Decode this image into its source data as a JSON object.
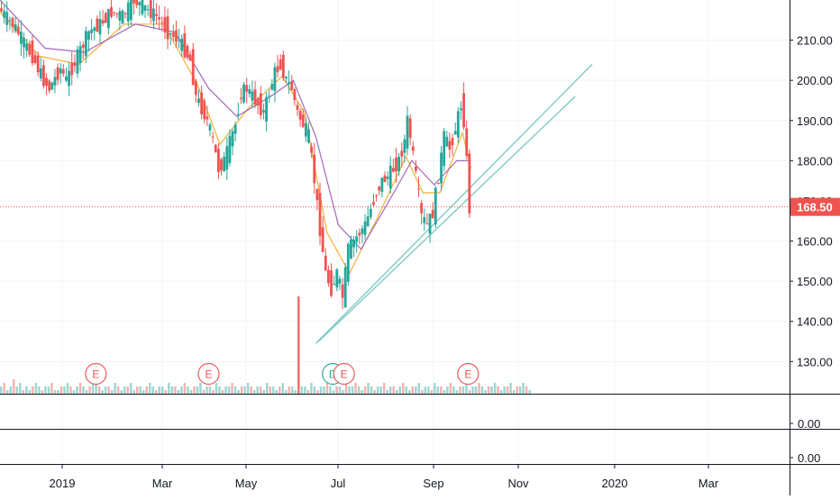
{
  "chart_data": {
    "type": "candlestick",
    "price_axis": {
      "ticks": [
        "130.00",
        "140.00",
        "150.00",
        "160.00",
        "170.00",
        "180.00",
        "190.00",
        "200.00",
        "210.00"
      ],
      "tick_values": [
        130,
        140,
        150,
        160,
        170,
        180,
        190,
        200,
        210
      ],
      "range": [
        122,
        220
      ]
    },
    "time_axis": {
      "labels": [
        "2019",
        "Mar",
        "May",
        "Jul",
        "Sep",
        "Nov",
        "2020",
        "Mar"
      ]
    },
    "last_price": {
      "label": "168.50",
      "value": 168.5
    },
    "price_series": [
      {
        "t": 0,
        "v": 218
      },
      {
        "t": 6,
        "v": 213
      },
      {
        "t": 10,
        "v": 208
      },
      {
        "t": 12,
        "v": 206
      },
      {
        "t": 16,
        "v": 200
      },
      {
        "t": 18,
        "v": 198
      },
      {
        "t": 22,
        "v": 203
      },
      {
        "t": 24,
        "v": 200
      },
      {
        "t": 28,
        "v": 206
      },
      {
        "t": 32,
        "v": 212
      },
      {
        "t": 36,
        "v": 214
      },
      {
        "t": 40,
        "v": 217
      },
      {
        "t": 44,
        "v": 216
      },
      {
        "t": 48,
        "v": 220
      },
      {
        "t": 52,
        "v": 218
      },
      {
        "t": 56,
        "v": 216
      },
      {
        "t": 60,
        "v": 212
      },
      {
        "t": 64,
        "v": 210
      },
      {
        "t": 68,
        "v": 205
      },
      {
        "t": 70,
        "v": 196
      },
      {
        "t": 74,
        "v": 190
      },
      {
        "t": 76,
        "v": 185
      },
      {
        "t": 78,
        "v": 178
      },
      {
        "t": 80,
        "v": 180
      },
      {
        "t": 84,
        "v": 189
      },
      {
        "t": 86,
        "v": 197
      },
      {
        "t": 88,
        "v": 198
      },
      {
        "t": 92,
        "v": 194
      },
      {
        "t": 94,
        "v": 192
      },
      {
        "t": 96,
        "v": 197
      },
      {
        "t": 98,
        "v": 202
      },
      {
        "t": 100,
        "v": 204
      },
      {
        "t": 102,
        "v": 200
      },
      {
        "t": 104,
        "v": 198
      },
      {
        "t": 106,
        "v": 192
      },
      {
        "t": 108,
        "v": 189
      },
      {
        "t": 110,
        "v": 186
      },
      {
        "t": 112,
        "v": 175
      },
      {
        "t": 114,
        "v": 163
      },
      {
        "t": 116,
        "v": 152
      },
      {
        "t": 118,
        "v": 148
      },
      {
        "t": 120,
        "v": 152
      },
      {
        "t": 122,
        "v": 146
      },
      {
        "t": 124,
        "v": 158
      },
      {
        "t": 126,
        "v": 160
      },
      {
        "t": 128,
        "v": 162
      },
      {
        "t": 130,
        "v": 164
      },
      {
        "t": 132,
        "v": 168
      },
      {
        "t": 134,
        "v": 172
      },
      {
        "t": 136,
        "v": 175
      },
      {
        "t": 138,
        "v": 176
      },
      {
        "t": 140,
        "v": 178
      },
      {
        "t": 142,
        "v": 180
      },
      {
        "t": 144,
        "v": 185
      },
      {
        "t": 145,
        "v": 190
      },
      {
        "t": 146,
        "v": 186
      },
      {
        "t": 148,
        "v": 176
      },
      {
        "t": 150,
        "v": 166
      },
      {
        "t": 152,
        "v": 164
      },
      {
        "t": 154,
        "v": 167
      },
      {
        "t": 156,
        "v": 176
      },
      {
        "t": 158,
        "v": 186
      },
      {
        "t": 160,
        "v": 183
      },
      {
        "t": 162,
        "v": 188
      },
      {
        "t": 164,
        "v": 194
      },
      {
        "t": 165,
        "v": 190
      },
      {
        "t": 166,
        "v": 180
      },
      {
        "t": 167,
        "v": 168
      }
    ],
    "moving_averages": [
      {
        "color": "#f5a623",
        "values": [
          {
            "t": 0,
            "v": 217
          },
          {
            "t": 14,
            "v": 206
          },
          {
            "t": 28,
            "v": 204
          },
          {
            "t": 44,
            "v": 214
          },
          {
            "t": 58,
            "v": 214
          },
          {
            "t": 70,
            "v": 199
          },
          {
            "t": 78,
            "v": 184
          },
          {
            "t": 88,
            "v": 193
          },
          {
            "t": 100,
            "v": 201
          },
          {
            "t": 108,
            "v": 192
          },
          {
            "t": 116,
            "v": 162
          },
          {
            "t": 124,
            "v": 152
          },
          {
            "t": 134,
            "v": 166
          },
          {
            "t": 144,
            "v": 181
          },
          {
            "t": 150,
            "v": 172
          },
          {
            "t": 156,
            "v": 172
          },
          {
            "t": 164,
            "v": 187
          },
          {
            "t": 167,
            "v": 178
          }
        ]
      },
      {
        "color": "#9b59b6",
        "values": [
          {
            "t": 0,
            "v": 220
          },
          {
            "t": 16,
            "v": 208
          },
          {
            "t": 30,
            "v": 207
          },
          {
            "t": 48,
            "v": 214
          },
          {
            "t": 62,
            "v": 212
          },
          {
            "t": 74,
            "v": 198
          },
          {
            "t": 84,
            "v": 191
          },
          {
            "t": 96,
            "v": 196
          },
          {
            "t": 104,
            "v": 200
          },
          {
            "t": 112,
            "v": 186
          },
          {
            "t": 120,
            "v": 164
          },
          {
            "t": 128,
            "v": 158
          },
          {
            "t": 138,
            "v": 170
          },
          {
            "t": 146,
            "v": 180
          },
          {
            "t": 154,
            "v": 174
          },
          {
            "t": 162,
            "v": 180
          },
          {
            "t": 167,
            "v": 180
          }
        ]
      }
    ],
    "trendlines": [
      {
        "t1": 112,
        "v1": 134.5,
        "t2": 210,
        "v2": 204
      },
      {
        "t1": 113,
        "v1": 135,
        "t2": 204,
        "v2": 196
      }
    ],
    "volume": {
      "spike_index": 94,
      "bars": [
        2,
        3,
        1,
        2,
        4,
        2,
        3,
        1,
        2,
        1,
        2,
        3,
        2,
        1,
        2,
        2,
        3,
        1,
        1,
        2,
        2,
        3,
        2,
        1,
        2,
        3,
        2,
        1,
        2,
        3,
        4,
        2,
        1,
        2,
        2,
        1,
        3,
        2,
        1,
        2,
        2,
        3,
        1,
        2,
        2,
        1,
        2,
        3,
        2,
        1,
        2,
        2,
        1,
        3,
        2,
        2,
        1,
        2,
        3,
        2,
        1,
        2,
        2,
        3,
        1,
        2,
        2,
        1,
        3,
        2,
        1,
        2,
        2,
        3,
        2,
        1,
        2,
        2,
        3,
        2,
        1,
        2,
        2,
        1,
        3,
        2,
        2,
        1,
        2,
        3,
        1,
        2,
        2,
        1,
        24,
        2,
        2,
        1,
        3,
        2,
        1,
        2,
        2,
        3,
        2,
        1,
        2,
        2,
        1,
        3,
        2,
        2,
        3,
        2,
        1,
        2,
        3,
        2,
        1,
        2,
        2,
        3,
        1,
        2,
        2,
        1,
        2,
        3,
        2,
        1,
        2,
        2,
        3,
        1,
        2,
        2,
        1,
        3,
        2,
        2,
        1,
        2,
        3,
        2,
        1,
        2,
        2,
        3,
        1,
        2,
        2,
        3,
        2,
        1,
        2,
        2,
        3,
        2,
        1,
        2,
        2,
        3,
        1,
        2,
        2,
        3,
        2,
        1
      ]
    },
    "event_markers": [
      {
        "label": "E",
        "t": 34
      },
      {
        "label": "E",
        "t": 74
      },
      {
        "label": "D",
        "t": 118
      },
      {
        "label": "E",
        "t": 122
      },
      {
        "label": "E",
        "t": 166
      }
    ],
    "subpanels": [
      {
        "label": "0.00"
      },
      {
        "label": "0.00"
      }
    ]
  },
  "colors": {
    "up": "#26a69a",
    "down": "#ef5350",
    "trendline": "#80cbc4",
    "price_line": "#ef5350"
  }
}
